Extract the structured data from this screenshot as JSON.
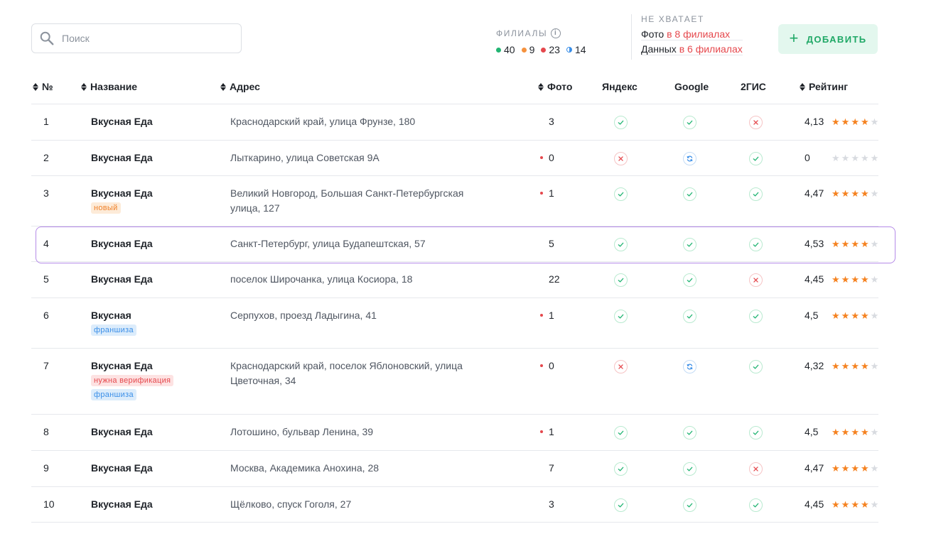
{
  "search": {
    "placeholder": "Поиск"
  },
  "branches": {
    "title": "ФИЛИАЛЫ",
    "info_icon": "info-icon",
    "counts": [
      {
        "value": "40",
        "color": "#22b573",
        "kind": "dot"
      },
      {
        "value": "9",
        "color": "#f5923e",
        "kind": "dot"
      },
      {
        "value": "23",
        "color": "#e5484d",
        "kind": "dot"
      },
      {
        "value": "14",
        "color": "#3b8fe8",
        "kind": "half"
      }
    ]
  },
  "missing": {
    "title": "НЕ ХВАТАЕТ",
    "photo_label": "Фото",
    "photo_value": "в 8 филиалах",
    "data_label": "Данных",
    "data_value": "в 6 филиалах"
  },
  "add_button": {
    "label": "ДОБАВИТЬ",
    "icon": "plus-icon"
  },
  "table": {
    "headers": {
      "num": "№",
      "name": "Название",
      "address": "Адрес",
      "photo": "Фото",
      "yandex": "Яндекс",
      "google": "Google",
      "gis": "2ГИС",
      "rating": "Рейтинг"
    },
    "rows": [
      {
        "num": "1",
        "name": "Вкусная Еда",
        "badges": [],
        "address": "Краснодарский край, улица Фрунзе, 180",
        "photo": "3",
        "photo_alert": false,
        "yandex": "ok",
        "google": "ok",
        "gis": "err",
        "rating": "4,13",
        "stars": 4
      },
      {
        "num": "2",
        "name": "Вкусная Еда",
        "badges": [],
        "address": "Лыткарино, улица Советская 9А",
        "photo": "0",
        "photo_alert": true,
        "yandex": "err",
        "google": "sync",
        "gis": "ok",
        "rating": "0",
        "stars": 0
      },
      {
        "num": "3",
        "name": "Вкусная Еда",
        "badges": [
          {
            "type": "new",
            "text": "новый"
          }
        ],
        "address": "Великий Новгород, Большая Санкт-Петербургская улица, 127",
        "photo": "1",
        "photo_alert": true,
        "yandex": "ok",
        "google": "ok",
        "gis": "ok",
        "rating": "4,47",
        "stars": 4
      },
      {
        "num": "4",
        "name": "Вкусная Еда",
        "badges": [],
        "address": "Санкт-Петербург, улица Будапештская, 57",
        "photo": "5",
        "photo_alert": false,
        "yandex": "ok",
        "google": "ok",
        "gis": "ok",
        "rating": "4,53",
        "stars": 4
      },
      {
        "num": "5",
        "name": "Вкусная Еда",
        "badges": [],
        "address": "поселок Широчанка, улица Косиора, 18",
        "photo": "22",
        "photo_alert": false,
        "yandex": "ok",
        "google": "ok",
        "gis": "err",
        "rating": "4,45",
        "stars": 4
      },
      {
        "num": "6",
        "name": "Вкусная",
        "badges": [
          {
            "type": "franchise",
            "text": "франшиза"
          }
        ],
        "address": "Серпухов, проезд Ладыгина, 41",
        "photo": "1",
        "photo_alert": true,
        "yandex": "ok",
        "google": "ok",
        "gis": "ok",
        "rating": "4,5",
        "stars": 4
      },
      {
        "num": "7",
        "name": "Вкусная Еда",
        "badges": [
          {
            "type": "verify",
            "text": "нужна верификация"
          },
          {
            "type": "franchise",
            "text": "франшиза"
          }
        ],
        "address": "Краснодарский край, поселок Яблоновский, улица Цветочная, 34",
        "photo": "0",
        "photo_alert": true,
        "yandex": "err",
        "google": "sync",
        "gis": "ok",
        "rating": "4,32",
        "stars": 4
      },
      {
        "num": "8",
        "name": "Вкусная Еда",
        "badges": [],
        "address": "Лотошино, бульвар Ленина, 39",
        "photo": "1",
        "photo_alert": true,
        "yandex": "ok",
        "google": "ok",
        "gis": "ok",
        "rating": "4,5",
        "stars": 4
      },
      {
        "num": "9",
        "name": "Вкусная Еда",
        "badges": [],
        "address": "Москва, Академика Анохина, 28",
        "photo": "7",
        "photo_alert": false,
        "yandex": "ok",
        "google": "ok",
        "gis": "err",
        "rating": "4,47",
        "stars": 4
      },
      {
        "num": "10",
        "name": "Вкусная Еда",
        "badges": [],
        "address": "Щёлково, спуск Гоголя, 27",
        "photo": "3",
        "photo_alert": false,
        "yandex": "ok",
        "google": "ok",
        "gis": "ok",
        "rating": "4,45",
        "stars": 4
      }
    ],
    "highlighted_row": "4"
  },
  "colors": {
    "accent_green": "#1fa866",
    "alert_red": "#e5484d",
    "warning_orange": "#f5923e",
    "info_blue": "#3b8fe8",
    "star_orange": "#f58220",
    "highlight_purple": "#b58be8"
  }
}
